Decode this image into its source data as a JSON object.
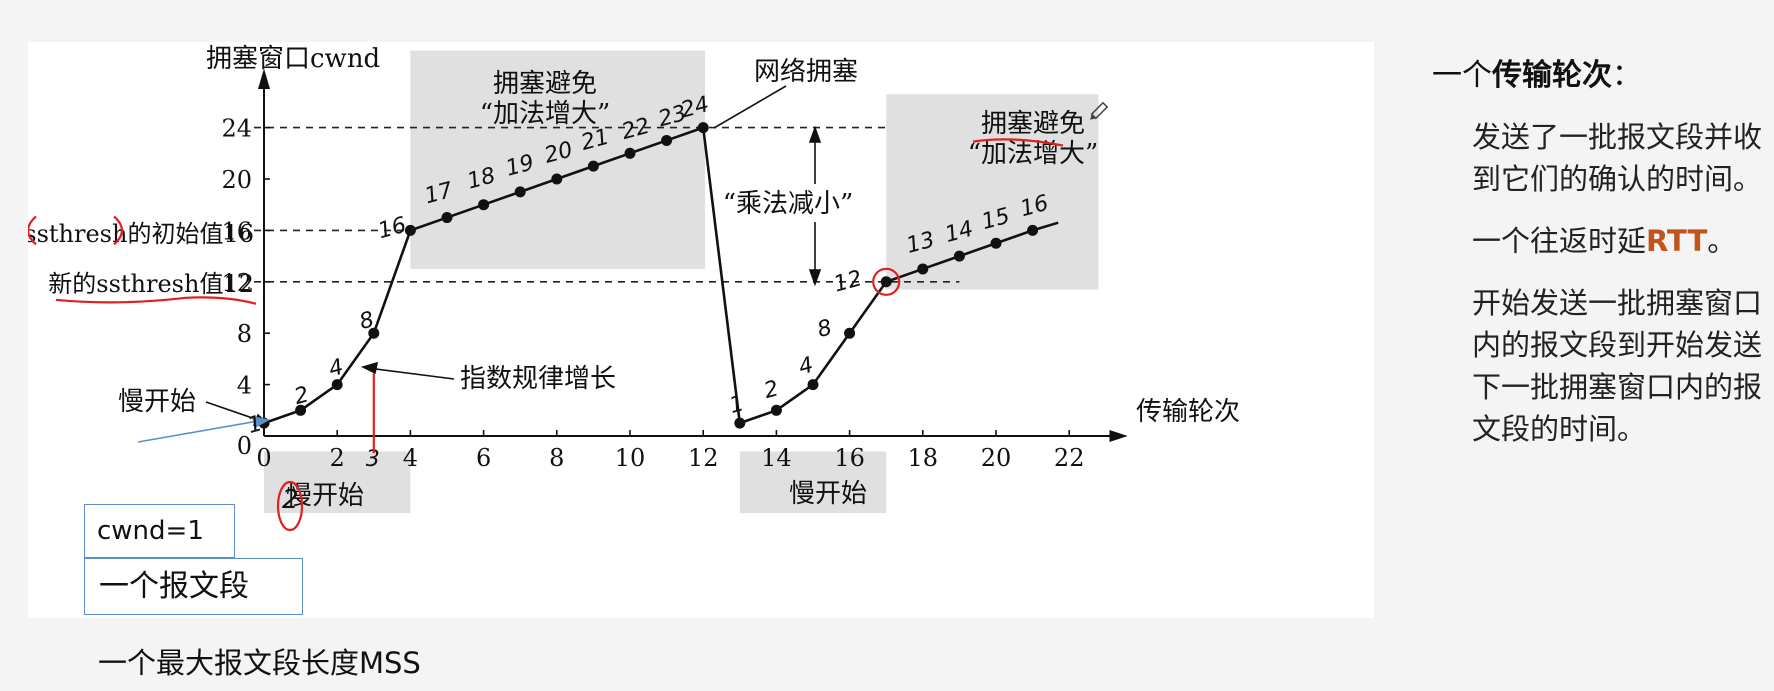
{
  "chart_data": {
    "type": "line",
    "title": "",
    "ylabel": "拥塞窗口cwnd",
    "xlabel": "传输轮次",
    "xlim": [
      0,
      23
    ],
    "ylim": [
      0,
      26
    ],
    "x_ticks": [
      "0",
      "2",
      "4",
      "6",
      "8",
      "10",
      "12",
      "14",
      "16",
      "18",
      "20",
      "22"
    ],
    "y_ticks": [
      "0",
      "4",
      "8",
      "12",
      "16",
      "20",
      "24"
    ],
    "series": [
      {
        "x": [
          0,
          1,
          2,
          3,
          4,
          5,
          6,
          7,
          8,
          9,
          10,
          11,
          12
        ],
        "y": [
          1,
          2,
          4,
          8,
          16,
          17,
          18,
          19,
          20,
          21,
          22,
          23,
          24
        ]
      },
      {
        "x": [
          12,
          13
        ],
        "y": [
          24,
          1
        ]
      },
      {
        "x": [
          13,
          14,
          15,
          16,
          17,
          18,
          19,
          20,
          21,
          21.7
        ],
        "y": [
          1,
          2,
          4,
          8,
          12,
          13,
          14,
          15,
          16,
          16.6
        ]
      }
    ],
    "thresholds": [
      {
        "y": 24,
        "label": ""
      },
      {
        "y": 16,
        "label": "ssthresh的初始值16"
      },
      {
        "y": 12,
        "label": "新的ssthresh值12"
      }
    ],
    "regions": [
      {
        "x": [
          0,
          4
        ],
        "label": "慢开始"
      },
      {
        "x": [
          4,
          12
        ],
        "label": "拥塞避免\n“加法增大”"
      },
      {
        "x": [
          13,
          17
        ],
        "label": "慢开始"
      },
      {
        "x": [
          17,
          22
        ],
        "label": "拥塞避免\n“加法增大”"
      }
    ],
    "annotations": {
      "congestion": "网络拥塞",
      "multiplicative_decrease": "“乘法减小”",
      "exponential_growth": "指数规律增长",
      "slow_start_pointer": "慢开始",
      "ca_line1": "拥塞避免",
      "ca_line2": "“加法增大”",
      "ss_label": "慢开始"
    },
    "handwritten": {
      "left": [
        "1",
        "2",
        "4",
        "8",
        "16",
        "17",
        "18",
        "19",
        "20",
        "21",
        "22",
        "23",
        "24"
      ],
      "right": [
        "1",
        "2",
        "4",
        "8",
        "12",
        "13",
        "14",
        "15",
        "16"
      ],
      "under_axis": [
        "3",
        "2"
      ]
    }
  },
  "notes": {
    "cwnd_box": "cwnd=1",
    "segment_box": "一个报文段",
    "mss": "一个最大报文段长度MSS"
  },
  "side": {
    "title_prefix": "一个",
    "title_bold": "传输轮次",
    "title_suffix": "：",
    "p1": "发送了一批报文段并收到它们的确认的时间。",
    "p2_prefix": "一个往返时延",
    "p2_rtt": "RTT",
    "p2_suffix": "。",
    "p3": "开始发送一批拥塞窗口内的报文段到开始发送下一批拥塞窗口内的报文段的时间。"
  },
  "colors": {
    "shade": "#e0e0e0",
    "ink": "#e02020",
    "line": "#111111",
    "boxBorder": "#5b8fc8",
    "rtt": "#c0541a"
  }
}
